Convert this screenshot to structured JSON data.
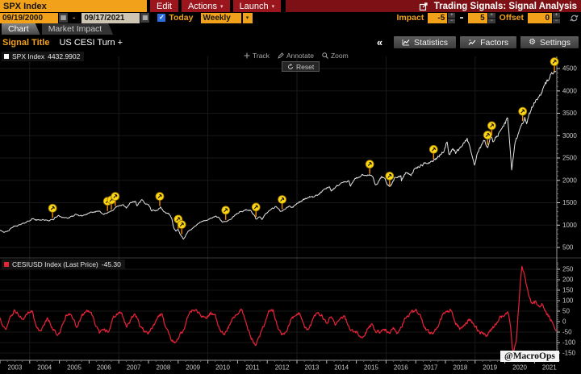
{
  "titlebar": {
    "ticker": "SPX Index",
    "edit_label": "Edit",
    "actions_label": "Actions",
    "launch_label": "Launch",
    "app_title": "Trading Signals: Signal Analysis"
  },
  "controls": {
    "date_from": "09/19/2000",
    "date_to": "09/17/2021",
    "today_label": "Today",
    "period_value": "Weekly",
    "impact_label": "Impact",
    "impact_min": "-5",
    "impact_max": "5",
    "offset_label": "Offset",
    "offset_value": "0"
  },
  "icons": {
    "caret_down": "▾",
    "check": "✓",
    "collapse": "«",
    "calendar": "▦",
    "stepper_up": "+",
    "stepper_down": "−",
    "gear": "⚙",
    "range_dash": "-",
    "impact_dash": "-"
  },
  "tabs": [
    {
      "label": "Chart",
      "active": true
    },
    {
      "label": "Market Impact",
      "active": false
    }
  ],
  "signal": {
    "title_label": "Signal Title",
    "title_value": "US CESI Turn +",
    "statistics_label": "Statistics",
    "factors_label": "Factors",
    "settings_label": "Settings"
  },
  "chart_toolbar": {
    "track": "Track",
    "annotate": "Annotate",
    "zoom": "Zoom",
    "reset": "Reset"
  },
  "watermark": "@MacroOps",
  "colors": {
    "amber": "#f2a11a",
    "button_red": "#9a161c",
    "title_band_red": "#7d1015",
    "spx_line": "#e4e4e4",
    "cesi_line": "#e82338",
    "marker_fill": "#ffd612",
    "grid": "#1b1b1b",
    "axis": "#9a9a9a",
    "axis_text": "#c9c9c9"
  },
  "x_axis": {
    "start": 2003.0,
    "end": 2021.75,
    "year_labels": [
      2003,
      2004,
      2005,
      2006,
      2007,
      2008,
      2009,
      2010,
      2011,
      2012,
      2013,
      2014,
      2015,
      2016,
      2017,
      2018,
      2019,
      2020,
      2021
    ],
    "gridline_years": [
      2004,
      2007,
      2010,
      2013,
      2016,
      2019
    ]
  },
  "chart_data": [
    {
      "type": "line",
      "name": "SPX Index",
      "legend_label": "SPX Index",
      "legend_value": "4432.9902",
      "color": "#e4e4e4",
      "ylim": [
        450,
        4760
      ],
      "yticks": [
        500,
        1000,
        1500,
        2000,
        2500,
        3000,
        3500,
        4000,
        4500
      ],
      "anchors": [
        [
          2003.0,
          895
        ],
        [
          2003.15,
          840
        ],
        [
          2003.25,
          855
        ],
        [
          2003.45,
          965
        ],
        [
          2003.7,
          1010
        ],
        [
          2003.95,
          1090
        ],
        [
          2004.1,
          1140
        ],
        [
          2004.25,
          1110
        ],
        [
          2004.45,
          1125
        ],
        [
          2004.6,
          1095
        ],
        [
          2004.8,
          1130
        ],
        [
          2004.95,
          1210
        ],
        [
          2005.1,
          1180
        ],
        [
          2005.3,
          1155
        ],
        [
          2005.55,
          1230
        ],
        [
          2005.75,
          1205
        ],
        [
          2005.95,
          1250
        ],
        [
          2006.15,
          1290
        ],
        [
          2006.35,
          1320
        ],
        [
          2006.5,
          1240
        ],
        [
          2006.7,
          1290
        ],
        [
          2006.95,
          1420
        ],
        [
          2007.15,
          1440
        ],
        [
          2007.25,
          1390
        ],
        [
          2007.4,
          1500
        ],
        [
          2007.55,
          1530
        ],
        [
          2007.62,
          1430
        ],
        [
          2007.78,
          1565
        ],
        [
          2007.88,
          1470
        ],
        [
          2008.0,
          1470
        ],
        [
          2008.1,
          1330
        ],
        [
          2008.3,
          1330
        ],
        [
          2008.4,
          1400
        ],
        [
          2008.55,
          1280
        ],
        [
          2008.7,
          1250
        ],
        [
          2008.78,
          1160
        ],
        [
          2008.85,
          940
        ],
        [
          2008.92,
          870
        ],
        [
          2009.0,
          900
        ],
        [
          2009.05,
          820
        ],
        [
          2009.18,
          680
        ],
        [
          2009.35,
          870
        ],
        [
          2009.5,
          930
        ],
        [
          2009.7,
          1060
        ],
        [
          2009.95,
          1110
        ],
        [
          2010.1,
          1140
        ],
        [
          2010.25,
          1200
        ],
        [
          2010.35,
          1170
        ],
        [
          2010.5,
          1060
        ],
        [
          2010.62,
          1090
        ],
        [
          2010.75,
          1120
        ],
        [
          2010.95,
          1240
        ],
        [
          2011.1,
          1300
        ],
        [
          2011.3,
          1340
        ],
        [
          2011.45,
          1320
        ],
        [
          2011.58,
          1200
        ],
        [
          2011.62,
          1130
        ],
        [
          2011.75,
          1200
        ],
        [
          2011.82,
          1130
        ],
        [
          2011.95,
          1250
        ],
        [
          2012.1,
          1340
        ],
        [
          2012.3,
          1410
        ],
        [
          2012.45,
          1300
        ],
        [
          2012.6,
          1360
        ],
        [
          2012.75,
          1430
        ],
        [
          2012.85,
          1390
        ],
        [
          2013.0,
          1480
        ],
        [
          2013.2,
          1560
        ],
        [
          2013.45,
          1640
        ],
        [
          2013.55,
          1610
        ],
        [
          2013.75,
          1700
        ],
        [
          2013.95,
          1810
        ],
        [
          2014.1,
          1840
        ],
        [
          2014.15,
          1760
        ],
        [
          2014.35,
          1880
        ],
        [
          2014.55,
          1960
        ],
        [
          2014.75,
          1970
        ],
        [
          2014.8,
          1880
        ],
        [
          2014.95,
          2060
        ],
        [
          2015.1,
          2050
        ],
        [
          2015.2,
          2110
        ],
        [
          2015.4,
          2120
        ],
        [
          2015.55,
          2100
        ],
        [
          2015.63,
          1880
        ],
        [
          2015.75,
          1960
        ],
        [
          2015.85,
          2080
        ],
        [
          2015.95,
          2050
        ],
        [
          2016.05,
          1920
        ],
        [
          2016.12,
          1840
        ],
        [
          2016.3,
          2050
        ],
        [
          2016.5,
          2100
        ],
        [
          2016.52,
          2000
        ],
        [
          2016.65,
          2170
        ],
        [
          2016.85,
          2130
        ],
        [
          2016.95,
          2240
        ],
        [
          2017.15,
          2320
        ],
        [
          2017.35,
          2380
        ],
        [
          2017.6,
          2440
        ],
        [
          2017.8,
          2550
        ],
        [
          2017.95,
          2670
        ],
        [
          2018.05,
          2870
        ],
        [
          2018.12,
          2590
        ],
        [
          2018.25,
          2700
        ],
        [
          2018.35,
          2620
        ],
        [
          2018.55,
          2780
        ],
        [
          2018.73,
          2930
        ],
        [
          2018.85,
          2650
        ],
        [
          2018.98,
          2350
        ],
        [
          2019.1,
          2650
        ],
        [
          2019.3,
          2900
        ],
        [
          2019.42,
          2750
        ],
        [
          2019.55,
          2980
        ],
        [
          2019.6,
          2850
        ],
        [
          2019.75,
          3000
        ],
        [
          2019.95,
          3220
        ],
        [
          2020.1,
          3380
        ],
        [
          2020.18,
          2700
        ],
        [
          2020.23,
          2240
        ],
        [
          2020.35,
          2850
        ],
        [
          2020.45,
          3050
        ],
        [
          2020.55,
          3230
        ],
        [
          2020.68,
          3400
        ],
        [
          2020.73,
          3270
        ],
        [
          2020.85,
          3510
        ],
        [
          2020.95,
          3700
        ],
        [
          2021.05,
          3800
        ],
        [
          2021.15,
          3900
        ],
        [
          2021.25,
          3940
        ],
        [
          2021.35,
          4180
        ],
        [
          2021.45,
          4200
        ],
        [
          2021.55,
          4410
        ],
        [
          2021.62,
          4350
        ],
        [
          2021.72,
          4433
        ]
      ],
      "signal_markers": [
        [
          2004.77,
          1125
        ],
        [
          2006.62,
          1280
        ],
        [
          2006.75,
          1310
        ],
        [
          2006.88,
          1390
        ],
        [
          2008.38,
          1390
        ],
        [
          2009.0,
          880
        ],
        [
          2009.12,
          760
        ],
        [
          2010.6,
          1080
        ],
        [
          2011.62,
          1150
        ],
        [
          2012.5,
          1320
        ],
        [
          2015.45,
          2110
        ],
        [
          2016.12,
          1845
        ],
        [
          2017.6,
          2440
        ],
        [
          2019.42,
          2760
        ],
        [
          2019.56,
          2970
        ],
        [
          2020.6,
          3290
        ],
        [
          2021.67,
          4400
        ]
      ]
    },
    {
      "type": "line",
      "name": "CESIUSD Index",
      "legend_label": "CESIUSD Index (Last Price)",
      "legend_value": "-45.30",
      "color": "#e82338",
      "ylim": [
        -175,
        290
      ],
      "yticks": [
        250,
        200,
        150,
        100,
        50,
        0,
        -50,
        -100,
        -150
      ],
      "anchors": [
        [
          2003.0,
          15
        ],
        [
          2003.1,
          -20
        ],
        [
          2003.2,
          -38
        ],
        [
          2003.35,
          25
        ],
        [
          2003.5,
          52
        ],
        [
          2003.65,
          30
        ],
        [
          2003.8,
          8
        ],
        [
          2003.95,
          40
        ],
        [
          2004.1,
          48
        ],
        [
          2004.2,
          -15
        ],
        [
          2004.35,
          -52
        ],
        [
          2004.5,
          -20
        ],
        [
          2004.6,
          22
        ],
        [
          2004.75,
          -28
        ],
        [
          2004.9,
          -55
        ],
        [
          2005.0,
          -62
        ],
        [
          2005.15,
          5
        ],
        [
          2005.3,
          42
        ],
        [
          2005.45,
          18
        ],
        [
          2005.6,
          -28
        ],
        [
          2005.75,
          25
        ],
        [
          2005.9,
          48
        ],
        [
          2006.05,
          55
        ],
        [
          2006.2,
          -12
        ],
        [
          2006.35,
          -58
        ],
        [
          2006.5,
          -35
        ],
        [
          2006.65,
          -48
        ],
        [
          2006.8,
          15
        ],
        [
          2006.95,
          38
        ],
        [
          2007.1,
          42
        ],
        [
          2007.25,
          -25
        ],
        [
          2007.4,
          8
        ],
        [
          2007.55,
          42
        ],
        [
          2007.7,
          -15
        ],
        [
          2007.85,
          -45
        ],
        [
          2008.0,
          -58
        ],
        [
          2008.15,
          -25
        ],
        [
          2008.3,
          25
        ],
        [
          2008.45,
          35
        ],
        [
          2008.6,
          -35
        ],
        [
          2008.75,
          -85
        ],
        [
          2008.9,
          -102
        ],
        [
          2009.05,
          -68
        ],
        [
          2009.2,
          -35
        ],
        [
          2009.35,
          35
        ],
        [
          2009.5,
          62
        ],
        [
          2009.65,
          48
        ],
        [
          2009.8,
          25
        ],
        [
          2009.95,
          15
        ],
        [
          2010.1,
          42
        ],
        [
          2010.25,
          28
        ],
        [
          2010.4,
          -35
        ],
        [
          2010.55,
          -62
        ],
        [
          2010.7,
          -25
        ],
        [
          2010.85,
          18
        ],
        [
          2011.0,
          42
        ],
        [
          2011.15,
          58
        ],
        [
          2011.3,
          -15
        ],
        [
          2011.45,
          -75
        ],
        [
          2011.6,
          -115
        ],
        [
          2011.75,
          -62
        ],
        [
          2011.9,
          -10
        ],
        [
          2012.05,
          42
        ],
        [
          2012.2,
          52
        ],
        [
          2012.35,
          -25
        ],
        [
          2012.5,
          -62
        ],
        [
          2012.65,
          -45
        ],
        [
          2012.8,
          8
        ],
        [
          2012.95,
          28
        ],
        [
          2013.1,
          38
        ],
        [
          2013.25,
          -18
        ],
        [
          2013.4,
          -42
        ],
        [
          2013.55,
          15
        ],
        [
          2013.7,
          42
        ],
        [
          2013.85,
          28
        ],
        [
          2014.0,
          -12
        ],
        [
          2014.15,
          32
        ],
        [
          2014.3,
          -22
        ],
        [
          2014.45,
          15
        ],
        [
          2014.6,
          25
        ],
        [
          2014.75,
          -32
        ],
        [
          2014.9,
          -45
        ],
        [
          2015.05,
          -58
        ],
        [
          2015.2,
          -72
        ],
        [
          2015.35,
          -45
        ],
        [
          2015.5,
          -12
        ],
        [
          2015.65,
          -42
        ],
        [
          2015.8,
          -52
        ],
        [
          2015.95,
          -38
        ],
        [
          2016.1,
          -52
        ],
        [
          2016.25,
          -28
        ],
        [
          2016.4,
          -62
        ],
        [
          2016.55,
          -15
        ],
        [
          2016.7,
          25
        ],
        [
          2016.85,
          42
        ],
        [
          2017.0,
          52
        ],
        [
          2017.15,
          38
        ],
        [
          2017.3,
          -28
        ],
        [
          2017.45,
          -52
        ],
        [
          2017.6,
          -58
        ],
        [
          2017.75,
          -15
        ],
        [
          2017.9,
          28
        ],
        [
          2018.05,
          48
        ],
        [
          2018.2,
          58
        ],
        [
          2018.35,
          -8
        ],
        [
          2018.5,
          -35
        ],
        [
          2018.65,
          -22
        ],
        [
          2018.8,
          12
        ],
        [
          2018.95,
          -15
        ],
        [
          2019.1,
          -42
        ],
        [
          2019.25,
          -58
        ],
        [
          2019.4,
          -65
        ],
        [
          2019.55,
          -35
        ],
        [
          2019.7,
          -12
        ],
        [
          2019.85,
          18
        ],
        [
          2020.0,
          38
        ],
        [
          2020.1,
          52
        ],
        [
          2020.17,
          5
        ],
        [
          2020.25,
          -118
        ],
        [
          2020.3,
          -145
        ],
        [
          2020.38,
          -95
        ],
        [
          2020.45,
          45
        ],
        [
          2020.52,
          180
        ],
        [
          2020.58,
          262
        ],
        [
          2020.65,
          238
        ],
        [
          2020.72,
          172
        ],
        [
          2020.8,
          128
        ],
        [
          2020.88,
          95
        ],
        [
          2020.95,
          82
        ],
        [
          2021.05,
          98
        ],
        [
          2021.15,
          72
        ],
        [
          2021.25,
          88
        ],
        [
          2021.35,
          52
        ],
        [
          2021.45,
          32
        ],
        [
          2021.55,
          8
        ],
        [
          2021.63,
          -18
        ],
        [
          2021.72,
          -45.3
        ]
      ]
    }
  ]
}
